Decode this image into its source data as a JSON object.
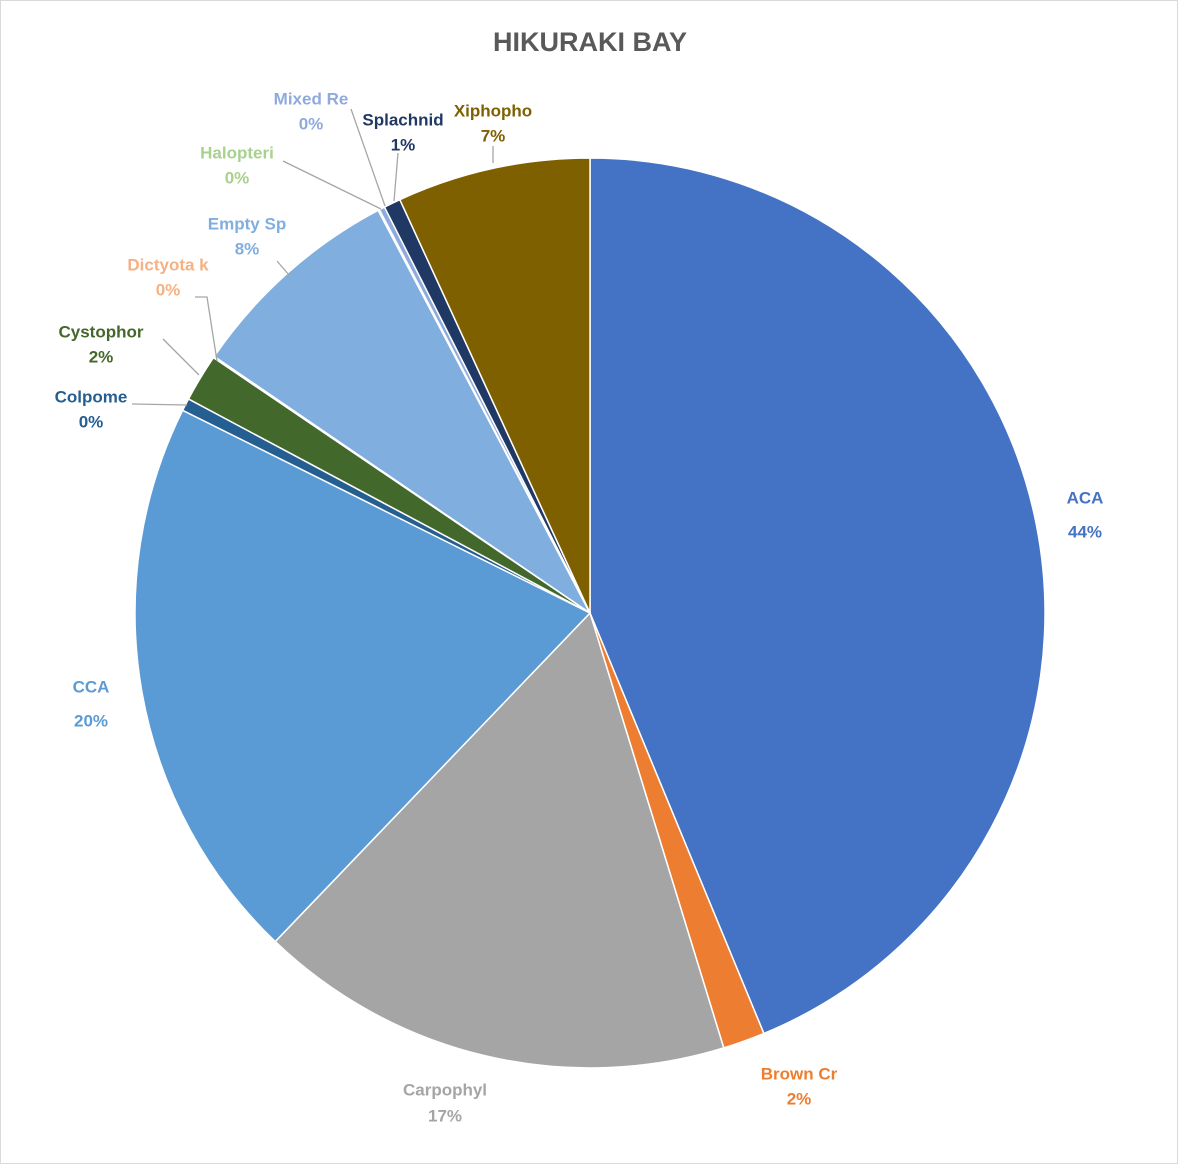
{
  "chart_data": {
    "type": "pie",
    "title": "HIKURAKI BAY",
    "slices": [
      {
        "label": "ACA",
        "value": 44,
        "percent_label": "44%",
        "color": "#4472c4"
      },
      {
        "label": "Brown Cr",
        "value": 1.5,
        "percent_label": "2%",
        "color": "#ed7d31"
      },
      {
        "label": "Carpophyl",
        "value": 17,
        "percent_label": "17%",
        "color": "#a5a5a5"
      },
      {
        "label": "CCA",
        "value": 20.3,
        "percent_label": "20%",
        "color": "#5b9bd5"
      },
      {
        "label": "Colpome",
        "value": 0.45,
        "percent_label": "0%",
        "color": "#255e91"
      },
      {
        "label": "Cystophor",
        "value": 1.7,
        "percent_label": "2%",
        "color": "#43682b"
      },
      {
        "label": "Dictyota k",
        "value": 0.05,
        "percent_label": "0%",
        "color": "#f4b183"
      },
      {
        "label": "Empty Sp",
        "value": 7.8,
        "percent_label": "8%",
        "color": "#7faedf"
      },
      {
        "label": "Halopteri",
        "value": 0.05,
        "percent_label": "0%",
        "color": "#a9d18e"
      },
      {
        "label": "Mixed Re",
        "value": 0.2,
        "percent_label": "0%",
        "color": "#8faadc"
      },
      {
        "label": "Splachnid",
        "value": 0.6,
        "percent_label": "1%",
        "color": "#1f3864"
      },
      {
        "label": "Xiphopho",
        "value": 6.9,
        "percent_label": "7%",
        "color": "#7f6000"
      }
    ]
  }
}
